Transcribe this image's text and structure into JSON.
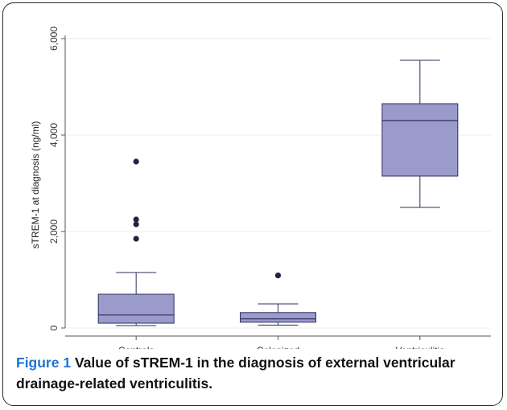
{
  "chart_data": {
    "type": "box",
    "xlabel": "",
    "ylabel": "sTREM-1 at diagnosis (ng/ml)",
    "ylim": [
      0,
      6000
    ],
    "yticks": [
      {
        "value": 0,
        "label": "0"
      },
      {
        "value": 2000,
        "label": "2,000"
      },
      {
        "value": 4000,
        "label": "4,000"
      },
      {
        "value": 6000,
        "label": "6,000"
      }
    ],
    "grid": true,
    "categories": [
      "Controls",
      "Colonized",
      "Ventriculitis"
    ],
    "boxes": [
      {
        "name": "Controls",
        "whisker_low": 50,
        "q1": 100,
        "median": 270,
        "q3": 700,
        "whisker_high": 1150,
        "outliers": [
          1850,
          2150,
          2250,
          3450
        ]
      },
      {
        "name": "Colonized",
        "whisker_low": 60,
        "q1": 120,
        "median": 190,
        "q3": 320,
        "whisker_high": 500,
        "outliers": [
          1090
        ]
      },
      {
        "name": "Ventriculitis",
        "whisker_low": 2500,
        "q1": 3150,
        "median": 4300,
        "q3": 4650,
        "whisker_high": 5550,
        "outliers": []
      }
    ],
    "colors": {
      "box": "#9b9bcb",
      "line": "#2e2e5e",
      "outlier": "#222244",
      "grid": "#ececec"
    }
  },
  "caption": {
    "lead": "Figure 1",
    "text": "Value of sTREM-1 in the diagnosis of external ventricular drainage-related ventriculitis."
  }
}
